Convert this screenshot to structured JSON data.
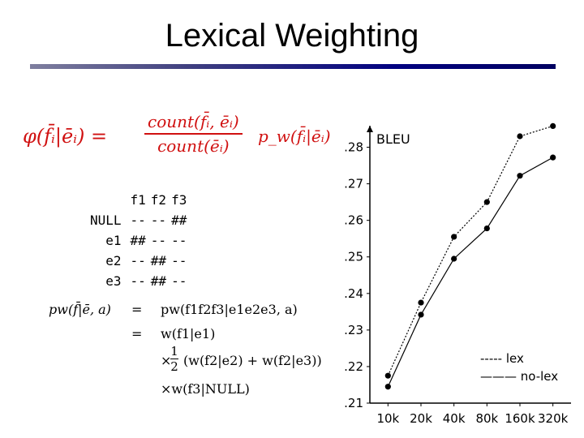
{
  "slide": {
    "title": "Lexical Weighting"
  },
  "formula": {
    "lhs": "φ(f̄ᵢ|ēᵢ) =",
    "numerator": "count(f̄ᵢ, ēᵢ)",
    "denominator": "count(ēᵢ)",
    "rhs": "p_w(f̄ᵢ|ēᵢ)"
  },
  "alignment": {
    "columns": [
      "f1",
      "f2",
      "f3"
    ],
    "rows": [
      {
        "label": "NULL",
        "cells": [
          "--",
          "--",
          "##"
        ]
      },
      {
        "label": "e1",
        "cells": [
          "##",
          "--",
          "--"
        ]
      },
      {
        "label": "e2",
        "cells": [
          "--",
          "##",
          "--"
        ]
      },
      {
        "label": "e3",
        "cells": [
          "--",
          "##",
          "--"
        ]
      }
    ]
  },
  "derivation": {
    "lhs": "pw(f̄|ē, a)",
    "eq1": "=",
    "rhs1": "pw(f1f2f3|e1e2e3, a)",
    "eq2": "=",
    "rhs2": "w(f1|e1)",
    "times": "×",
    "half_num": "1",
    "half_den": "2",
    "rhs3": "(w(f2|e2) + w(f2|e3))",
    "rhs4": "×w(f3|NULL)"
  },
  "chart_data": {
    "type": "line",
    "title": "",
    "xlabel": "",
    "ylabel": "BLEU",
    "categories": [
      "10k",
      "20k",
      "40k",
      "80k",
      "160k",
      "320k"
    ],
    "ylim": [
      0.21,
      0.285
    ],
    "yticks": [
      ".21",
      ".22",
      ".23",
      ".24",
      ".25",
      ".26",
      ".27",
      ".28"
    ],
    "ytick_values": [
      0.21,
      0.22,
      0.23,
      0.24,
      0.25,
      0.26,
      0.27,
      0.28
    ],
    "legend_position": "bottom-right",
    "series": [
      {
        "name": "lex",
        "style": "dotted",
        "values": [
          0.2175,
          0.2375,
          0.2555,
          0.265,
          0.283,
          0.2858
        ]
      },
      {
        "name": "no-lex",
        "style": "solid",
        "values": [
          0.2145,
          0.2342,
          0.2495,
          0.2578,
          0.2722,
          0.2772
        ]
      }
    ],
    "legend_items": [
      "----- lex",
      "——— no-lex"
    ]
  }
}
